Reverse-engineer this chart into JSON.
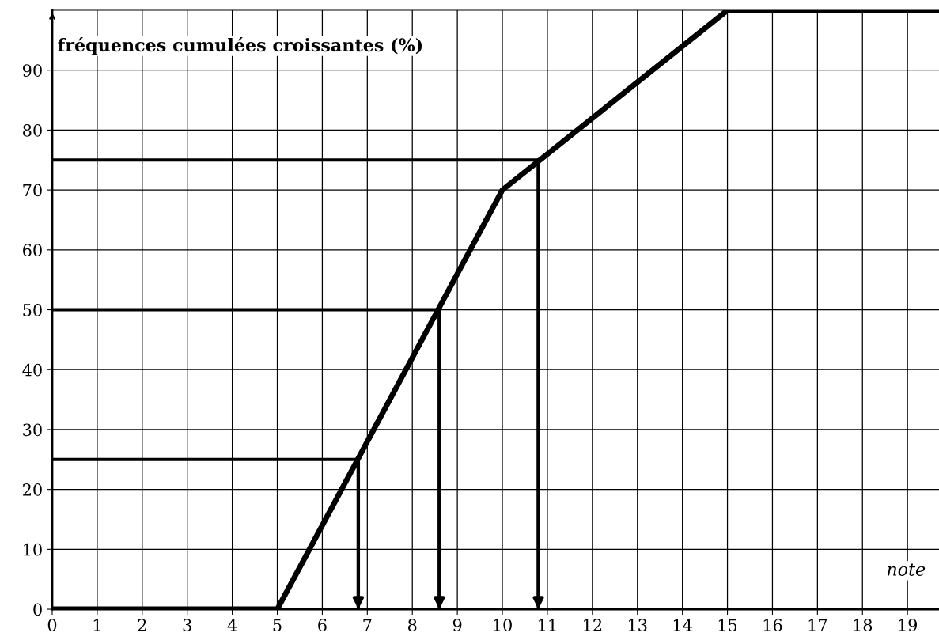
{
  "chart_data": {
    "type": "line",
    "ylabel": "fréquences cumulées croissantes (%)",
    "xlabel": "note",
    "x": [
      0,
      5,
      10,
      15,
      19.7
    ],
    "series": [
      {
        "color": "#000000",
        "values": [
          0,
          0,
          70,
          100,
          100
        ]
      },
      {
        "type": "line",
        "color": "#000000",
        "x": [
          0,
          6.8,
          6.8
        ],
        "values": [
          25,
          25,
          0
        ]
      },
      {
        "type": "line",
        "color": "#000000",
        "x": [
          0,
          8.6,
          8.6
        ],
        "values": [
          50,
          50,
          0
        ]
      },
      {
        "type": "line",
        "color": "#000000",
        "x": [
          0,
          10.8,
          10.8
        ],
        "values": [
          75,
          75,
          0
        ]
      }
    ],
    "xlim": [
      0,
      19.7
    ],
    "ylim": [
      0,
      100
    ],
    "xticks": [
      0,
      1,
      2,
      3,
      4,
      5,
      6,
      7,
      8,
      9,
      10,
      11,
      12,
      13,
      14,
      15,
      16,
      17,
      18,
      19
    ],
    "yticks": [
      0,
      10,
      20,
      30,
      40,
      50,
      60,
      70,
      80,
      90
    ],
    "grid": true
  }
}
